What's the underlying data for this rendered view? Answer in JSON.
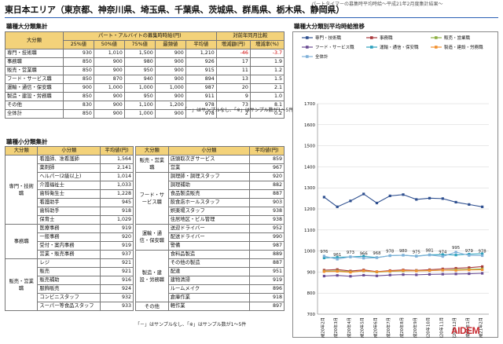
{
  "header": {
    "title": "東日本エリア（東京都、神奈川県、埼玉県、千葉県、茨城県、群馬県、栃木県、静岡県）",
    "subtitle": "パートタイマーの募集時平均時給〜平成21年2月度集計結果〜"
  },
  "large_section": {
    "label": "職種大分類集計",
    "col_category": "大分類",
    "col_group_wage": "パート・アルバイトの募集時時給(円)",
    "col_group_yoy": "対前年同月比較",
    "sub_headers": [
      "25%値",
      "50%値",
      "75%値",
      "最頻値",
      "平均値",
      "増減額(円)",
      "増減率(%)"
    ],
    "rows": [
      {
        "name": "専門・技術職",
        "p25": "930",
        "p50": "1,010",
        "p75": "1,500",
        "mode": "900",
        "avg": "1,210",
        "diff": "-46",
        "rate": "-3.7"
      },
      {
        "name": "事務職",
        "p25": "850",
        "p50": "900",
        "p75": "980",
        "mode": "900",
        "avg": "926",
        "diff": "17",
        "rate": "1.9"
      },
      {
        "name": "販売・営業職",
        "p25": "850",
        "p50": "900",
        "p75": "950",
        "mode": "900",
        "avg": "915",
        "diff": "11",
        "rate": "1.2"
      },
      {
        "name": "フード・サービス職",
        "p25": "850",
        "p50": "870",
        "p75": "940",
        "mode": "900",
        "avg": "894",
        "diff": "13",
        "rate": "1.5"
      },
      {
        "name": "運輸・通信・保安職",
        "p25": "900",
        "p50": "1,000",
        "p75": "1,000",
        "mode": "1,000",
        "avg": "987",
        "diff": "20",
        "rate": "2.1"
      },
      {
        "name": "製造・建設・労務職",
        "p25": "850",
        "p50": "900",
        "p75": "950",
        "mode": "900",
        "avg": "911",
        "diff": "9",
        "rate": "1.0"
      },
      {
        "name": "その他",
        "p25": "830",
        "p50": "900",
        "p75": "1,100",
        "mode": "1,200",
        "avg": "978",
        "diff": "73",
        "rate": "8.1"
      },
      {
        "name": "全体計",
        "p25": "850",
        "p50": "900",
        "p75": "1,000",
        "mode": "900",
        "avg": "978",
        "diff": "2",
        "rate": "0.2"
      }
    ],
    "note": "「－」はサンプルなし、「※」はサンプル数が1～5件"
  },
  "small_section": {
    "label": "職種小分類集計",
    "col_category": "大分類",
    "col_sub": "小分類",
    "col_avg": "平均値(円)",
    "left_groups": [
      {
        "category": "専門・技術職",
        "items": [
          {
            "name": "看護師、准看護師",
            "avg": "1,564"
          },
          {
            "name": "薬剤師",
            "avg": "2,141"
          },
          {
            "name": "ヘルパー(2級以上)",
            "avg": "1,014"
          },
          {
            "name": "介護福祉士",
            "avg": "1,033"
          },
          {
            "name": "歯科衛生士",
            "avg": "1,228"
          },
          {
            "name": "看護助手",
            "avg": "945"
          },
          {
            "name": "歯科助手",
            "avg": "918"
          },
          {
            "name": "保育士",
            "avg": "1,029"
          }
        ]
      },
      {
        "category": "事務職",
        "items": [
          {
            "name": "医療事務",
            "avg": "919"
          },
          {
            "name": "一般事務",
            "avg": "920"
          },
          {
            "name": "受付・案内事務",
            "avg": "919"
          },
          {
            "name": "営業・販売事務",
            "avg": "937"
          }
        ]
      },
      {
        "category": "販売・営業職",
        "items": [
          {
            "name": "レジ",
            "avg": "921"
          },
          {
            "name": "販売",
            "avg": "921"
          },
          {
            "name": "販売補助",
            "avg": "916"
          },
          {
            "name": "服飾販売",
            "avg": "924"
          },
          {
            "name": "コンビニスタッフ",
            "avg": "932"
          },
          {
            "name": "スーパー等食品スタッフ",
            "avg": "933"
          }
        ]
      }
    ],
    "right_groups": [
      {
        "category": "販売・営業職",
        "items": [
          {
            "name": "店頭取次ぎサービス",
            "avg": "859"
          },
          {
            "name": "営業",
            "avg": "967"
          }
        ]
      },
      {
        "category": "フード・サービス職",
        "items": [
          {
            "name": "調理師・調理スタッフ",
            "avg": "920"
          },
          {
            "name": "調理補助",
            "avg": "882"
          },
          {
            "name": "食品製造販売",
            "avg": "887"
          },
          {
            "name": "飲食店ホールスタッフ",
            "avg": "903"
          },
          {
            "name": "娯楽場スタッフ",
            "avg": "938"
          },
          {
            "name": "住居地区・ビル管理",
            "avg": "938"
          }
        ]
      },
      {
        "category": "運輸・通信・保安職",
        "items": [
          {
            "name": "送迎ドライバー",
            "avg": "952"
          },
          {
            "name": "配送ドライバー",
            "avg": "990"
          },
          {
            "name": "警備",
            "avg": "987"
          }
        ]
      },
      {
        "category": "製造・建設・労務職",
        "items": [
          {
            "name": "食料品製造",
            "avg": "889"
          },
          {
            "name": "その他の製造",
            "avg": "887"
          },
          {
            "name": "配達",
            "avg": "951"
          },
          {
            "name": "建物清掃",
            "avg": "919"
          },
          {
            "name": "ルームメイク",
            "avg": "896"
          },
          {
            "name": "倉庫作業",
            "avg": "918"
          }
        ]
      },
      {
        "category": "その他",
        "items": [
          {
            "name": "軽作業",
            "avg": "897"
          }
        ]
      }
    ],
    "note": "「－」はサンプルなし、「※」はサンプル数が1～5件"
  },
  "chart_section": {
    "label": "職種大分類別平均時給推移"
  },
  "logo": {
    "text": "AIDEM"
  },
  "chart_data": {
    "type": "line",
    "title": "職種大分類別平均時給推移",
    "x": [
      "平成20年2月",
      "平成20年3月",
      "平成20年4月",
      "平成20年5月",
      "平成20年6月",
      "平成20年7月",
      "平成20年8月",
      "平成20年9月",
      "平成20年10月",
      "平成20年11月",
      "平成20年12月",
      "平成21年1月",
      "平成21年2月"
    ],
    "ylim": [
      700,
      1700
    ],
    "yticks": [
      700,
      800,
      900,
      1000,
      1100,
      1200,
      1300,
      1400,
      1500,
      1600,
      1700
    ],
    "legend_position": "top",
    "series": [
      {
        "name": "専門・技術職",
        "color": "#2e4f8f",
        "values": [
          1256,
          1210,
          1238,
          1271,
          1228,
          1262,
          1268,
          1245,
          1251,
          1249,
          1232,
          1221,
          1210
        ]
      },
      {
        "name": "事務職",
        "color": "#a8383b",
        "values": [
          909,
          912,
          905,
          910,
          902,
          907,
          910,
          908,
          911,
          915,
          918,
          921,
          926
        ]
      },
      {
        "name": "販売・営業職",
        "color": "#8db043",
        "values": [
          904,
          906,
          901,
          905,
          900,
          903,
          905,
          906,
          907,
          909,
          911,
          913,
          915
        ]
      },
      {
        "name": "フード・サービス職",
        "color": "#6a4c93",
        "values": [
          881,
          884,
          880,
          885,
          882,
          886,
          888,
          887,
          889,
          890,
          891,
          892,
          894
        ]
      },
      {
        "name": "運輸・通信・保安職",
        "color": "#2a9fbc",
        "values": [
          967,
          970,
          972,
          975,
          969,
          978,
          980,
          976,
          982,
          983,
          981,
          985,
          987
        ]
      },
      {
        "name": "製造・建設・労務職",
        "color": "#f2912f",
        "values": [
          902,
          903,
          899,
          906,
          901,
          904,
          907,
          905,
          907,
          909,
          908,
          910,
          911
        ]
      },
      {
        "name": "全体計",
        "color": "#7fb0d8",
        "values": [
          976,
          961,
          973,
          966,
          968,
          978,
          980,
          975,
          981,
          974,
          995,
          979,
          978
        ]
      }
    ],
    "data_labels": {
      "series": "全体計",
      "values": [
        "976",
        "961",
        "973",
        "966",
        "968",
        "978",
        "980",
        "975",
        "981",
        "974",
        "995",
        "979",
        "978"
      ]
    }
  }
}
